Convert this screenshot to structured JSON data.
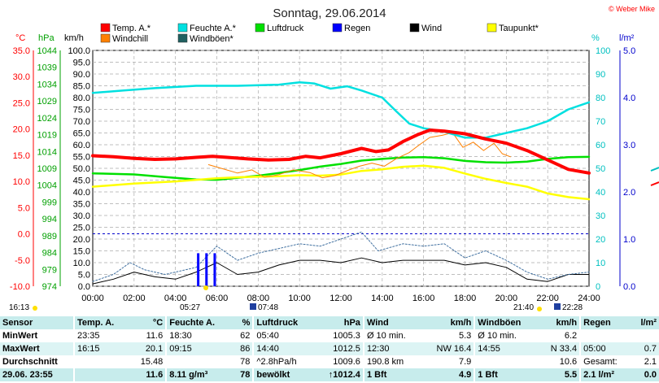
{
  "title": "Sonntag, 29.06.2014",
  "copyright": "© Weber Mike",
  "legend": [
    {
      "label": "Temp. A.*",
      "color": "#ff0000"
    },
    {
      "label": "Windchill",
      "color": "#ff8000"
    },
    {
      "label": "Feuchte A.*",
      "color": "#00e0e0"
    },
    {
      "label": "Windböen*",
      "color": "#206060"
    },
    {
      "label": "Luftdruck",
      "color": "#00e000"
    },
    {
      "label": "Regen",
      "color": "#0000ff"
    },
    {
      "label": "Wind",
      "color": "#000000"
    },
    {
      "label": "Taupunkt*",
      "color": "#ffff00"
    }
  ],
  "axis_units": {
    "temp": "°C",
    "pressure": "hPa",
    "wind": "km/h",
    "humidity": "%",
    "rain": "l/m²"
  },
  "sun_times": {
    "left": "16:13",
    "sunrise": "05:27",
    "moonrise": "07:48",
    "sunset": "21:40",
    "moonset": "22:28"
  },
  "chart_data": {
    "type": "line",
    "x_ticks": [
      "00:00",
      "02:00",
      "04:00",
      "06:00",
      "08:00",
      "10:00",
      "12:00",
      "14:00",
      "16:00",
      "18:00",
      "20:00",
      "22:00",
      "24:00"
    ],
    "xlim": [
      0,
      24
    ],
    "axes": {
      "temp": {
        "ticks": [
          "35.0",
          "30.0",
          "25.0",
          "20.0",
          "15.0",
          "10.0",
          "5.0",
          "0.0",
          "-5.0",
          "-10.0"
        ],
        "ylim": [
          -10,
          35
        ]
      },
      "pressure": {
        "ticks": [
          "1044",
          "1039",
          "1034",
          "1029",
          "1024",
          "1019",
          "1014",
          "1009",
          "1004",
          "999",
          "994",
          "989",
          "984",
          "979",
          "974"
        ],
        "ylim": [
          974,
          1044
        ]
      },
      "wind": {
        "ticks": [
          "100.0",
          "95.0",
          "90.0",
          "85.0",
          "80.0",
          "75.0",
          "70.0",
          "65.0",
          "60.0",
          "55.0",
          "50.0",
          "45.0",
          "40.0",
          "35.0",
          "30.0",
          "25.0",
          "20.0",
          "15.0",
          "10.0",
          "5.0",
          "0.0"
        ],
        "ylim": [
          0,
          100
        ]
      },
      "humidity": {
        "ticks": [
          "100",
          "90",
          "80",
          "70",
          "60",
          "50",
          "40",
          "30",
          "20",
          "10",
          "0"
        ],
        "ylim": [
          0,
          100
        ]
      },
      "rain": {
        "ticks": [
          "5.0",
          "4.0",
          "3.0",
          "2.0",
          "1.0",
          "0.0"
        ],
        "ylim": [
          0,
          5
        ]
      }
    },
    "series": [
      {
        "name": "Temp. A.*",
        "axis": "temp",
        "color": "#ff0000",
        "width": 4,
        "points": [
          [
            0,
            14.9
          ],
          [
            1,
            14.7
          ],
          [
            2,
            14.4
          ],
          [
            3,
            14.2
          ],
          [
            4,
            14.3
          ],
          [
            5,
            14.6
          ],
          [
            5.8,
            14.8
          ],
          [
            6.5,
            14.6
          ],
          [
            7.5,
            14.3
          ],
          [
            8.5,
            14.1
          ],
          [
            9.5,
            14.2
          ],
          [
            10.3,
            14.8
          ],
          [
            11,
            14.5
          ],
          [
            12,
            15.3
          ],
          [
            13,
            16.3
          ],
          [
            13.7,
            15.7
          ],
          [
            14.3,
            16
          ],
          [
            15,
            17.6
          ],
          [
            15.7,
            18.9
          ],
          [
            16.3,
            19.8
          ],
          [
            17,
            19.6
          ],
          [
            18,
            19.1
          ],
          [
            19,
            18.1
          ],
          [
            20,
            17.3
          ],
          [
            21,
            15.9
          ],
          [
            22,
            14.1
          ],
          [
            23,
            12.3
          ],
          [
            24,
            11.6
          ]
        ]
      },
      {
        "name": "Luftdruck",
        "axis": "pressure",
        "color": "#00e000",
        "width": 2.5,
        "points": [
          [
            0,
            1007.5
          ],
          [
            2,
            1007.2
          ],
          [
            3.5,
            1006.4
          ],
          [
            5,
            1005.7
          ],
          [
            6,
            1005.6
          ],
          [
            7,
            1006.2
          ],
          [
            8,
            1006.8
          ],
          [
            9,
            1007.6
          ],
          [
            10,
            1008.5
          ],
          [
            11,
            1009.5
          ],
          [
            12,
            1010.3
          ],
          [
            13,
            1011.3
          ],
          [
            14,
            1011.8
          ],
          [
            15,
            1012.2
          ],
          [
            16,
            1012.3
          ],
          [
            17,
            1012.0
          ],
          [
            18,
            1011.2
          ],
          [
            19,
            1010.8
          ],
          [
            20,
            1010.7
          ],
          [
            21,
            1011.0
          ],
          [
            22,
            1011.8
          ],
          [
            23,
            1012.3
          ],
          [
            24,
            1012.4
          ]
        ]
      },
      {
        "name": "Feuchte A.*",
        "axis": "humidity",
        "color": "#00e0e0",
        "width": 2.5,
        "points": [
          [
            0,
            82
          ],
          [
            1.5,
            83
          ],
          [
            3,
            84
          ],
          [
            5,
            85
          ],
          [
            7,
            85
          ],
          [
            9,
            85.5
          ],
          [
            10,
            86.5
          ],
          [
            10.7,
            86
          ],
          [
            11.5,
            83.8
          ],
          [
            12.3,
            84.8
          ],
          [
            13,
            83
          ],
          [
            14,
            80
          ],
          [
            14.7,
            74
          ],
          [
            15.3,
            69
          ],
          [
            16,
            67
          ],
          [
            17,
            65.5
          ],
          [
            18,
            63
          ],
          [
            19,
            63
          ],
          [
            20,
            65
          ],
          [
            21,
            67
          ],
          [
            22,
            70
          ],
          [
            23,
            75
          ],
          [
            24,
            78
          ]
        ]
      },
      {
        "name": "Taupunkt*",
        "axis": "temp",
        "color": "#ffff00",
        "width": 2.5,
        "points": [
          [
            0,
            9
          ],
          [
            2,
            9.6
          ],
          [
            4,
            10
          ],
          [
            6,
            10.6
          ],
          [
            7,
            10.8
          ],
          [
            8,
            10.9
          ],
          [
            9,
            11
          ],
          [
            10,
            11.2
          ],
          [
            11,
            11.1
          ],
          [
            12,
            11.3
          ],
          [
            13,
            12
          ],
          [
            14,
            12.3
          ],
          [
            15,
            12.8
          ],
          [
            16,
            13
          ],
          [
            17,
            12.6
          ],
          [
            18,
            11.5
          ],
          [
            19,
            10.5
          ],
          [
            20,
            9.7
          ],
          [
            21,
            9
          ],
          [
            22,
            7.7
          ],
          [
            23,
            7
          ],
          [
            24,
            6.6
          ]
        ]
      },
      {
        "name": "Windchill",
        "axis": "temp",
        "color": "#ff8000",
        "width": 1,
        "points": [
          [
            5.6,
            13.2
          ],
          [
            6.3,
            12.4
          ],
          [
            7,
            11.6
          ],
          [
            7.7,
            12.2
          ],
          [
            8.3,
            10.8
          ],
          [
            9,
            11.3
          ],
          [
            9.7,
            12.2
          ],
          [
            10.5,
            11.7
          ],
          [
            11.1,
            10.7
          ],
          [
            11.7,
            11.1
          ],
          [
            12.4,
            12.2
          ],
          [
            12.9,
            12.9
          ],
          [
            13.5,
            13.5
          ],
          [
            14.1,
            12.9
          ],
          [
            14.7,
            14.4
          ],
          [
            15.3,
            15.5
          ],
          [
            15.8,
            17
          ],
          [
            16.3,
            18.4
          ],
          [
            16.9,
            18.8
          ],
          [
            17.4,
            19.3
          ],
          [
            17.9,
            16.5
          ],
          [
            18.4,
            17.5
          ],
          [
            18.9,
            15.9
          ],
          [
            19.4,
            17.3
          ],
          [
            19.8,
            15.3
          ],
          [
            20.2,
            14.7
          ]
        ]
      },
      {
        "name": "Wind",
        "axis": "wind",
        "color": "#000000",
        "width": 1,
        "points": [
          [
            0,
            1
          ],
          [
            1,
            3
          ],
          [
            2,
            6
          ],
          [
            3,
            4
          ],
          [
            4,
            3
          ],
          [
            5,
            6
          ],
          [
            6,
            10
          ],
          [
            7,
            5
          ],
          [
            8,
            6
          ],
          [
            9,
            9
          ],
          [
            10,
            11
          ],
          [
            11,
            11
          ],
          [
            12,
            10
          ],
          [
            13,
            12
          ],
          [
            14,
            10
          ],
          [
            15,
            11
          ],
          [
            16,
            11
          ],
          [
            17,
            11
          ],
          [
            18,
            9
          ],
          [
            19,
            10
          ],
          [
            20,
            8
          ],
          [
            21,
            3
          ],
          [
            22,
            2
          ],
          [
            23,
            5
          ],
          [
            24,
            5
          ]
        ]
      },
      {
        "name": "Windböen*",
        "axis": "wind",
        "color": "#4070a0",
        "width": 1,
        "dash": "2,2",
        "points": [
          [
            0,
            2
          ],
          [
            1,
            5
          ],
          [
            1.8,
            10
          ],
          [
            2.5,
            7
          ],
          [
            3.5,
            5
          ],
          [
            5,
            8
          ],
          [
            6,
            17
          ],
          [
            7,
            11
          ],
          [
            8,
            14
          ],
          [
            9,
            16
          ],
          [
            10,
            18
          ],
          [
            11,
            17
          ],
          [
            12,
            20
          ],
          [
            13,
            23
          ],
          [
            13.8,
            15
          ],
          [
            15,
            18
          ],
          [
            16,
            17
          ],
          [
            17,
            18
          ],
          [
            18,
            12
          ],
          [
            19,
            15
          ],
          [
            20,
            11
          ],
          [
            21,
            6
          ],
          [
            22,
            3
          ],
          [
            23,
            5
          ],
          [
            24,
            6
          ]
        ]
      },
      {
        "name": "Regen",
        "axis": "rain",
        "color": "#0000ff",
        "type": "bars",
        "points": [
          [
            5.1,
            0.7
          ],
          [
            5.5,
            0.7
          ],
          [
            5.9,
            0.7
          ]
        ]
      }
    ]
  },
  "table": {
    "headers": [
      "Sensor",
      "Temp. A.",
      "°C",
      "Feuchte A.",
      "%",
      "Luftdruck",
      "hPa",
      "Wind",
      "km/h",
      "Windböen",
      "km/h",
      "Regen",
      "l/m²"
    ],
    "rows": [
      [
        "MinWert",
        "23:35",
        "11.6",
        "18:30",
        "62",
        "05:40",
        "1005.3",
        "Ø 10 min.",
        "5.3",
        "Ø 10 min.",
        "6.2",
        "",
        ""
      ],
      [
        "MaxWert",
        "16:15",
        "20.1",
        "09:15",
        "86",
        "14:40",
        "1012.5",
        "12:30",
        "NW 16.4",
        "14:55",
        "N 33.4",
        "05:00",
        "0.7"
      ],
      [
        "Durchschnitt",
        "",
        "15.48",
        "",
        "78",
        "^2.8hPa/h",
        "1009.6",
        "190.8 km",
        "7.9",
        "",
        "10.6",
        "Gesamt:",
        "2.1"
      ],
      [
        "29.06. 23:55",
        "",
        "11.6",
        "8.11 g/m³",
        "78",
        "bewölkt",
        "↑1012.4",
        "1 Bft",
        "4.9",
        "1 Bft",
        "5.5",
        "2.1 l/m²",
        "0.0"
      ]
    ]
  }
}
